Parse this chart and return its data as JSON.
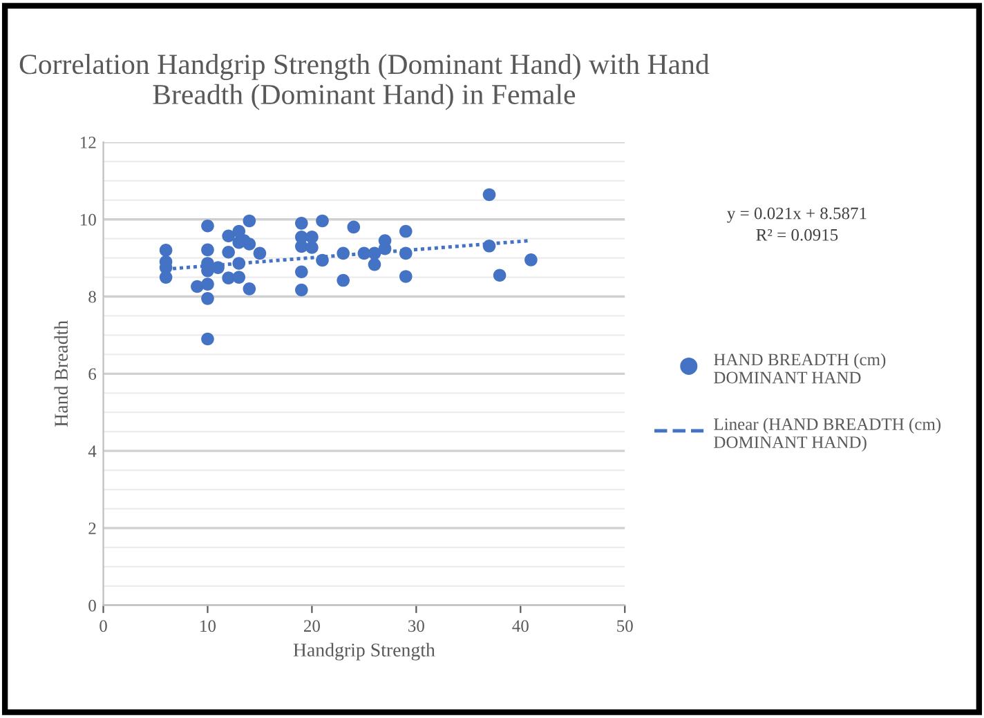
{
  "chart_data": {
    "type": "scatter",
    "title": "Correlation Handgrip Strength (Dominant Hand) with Hand Breadth (Dominant Hand) in Female",
    "xlabel": "Handgrip Strength",
    "ylabel": "Hand Breadth",
    "xlim": [
      0,
      50
    ],
    "xticks": [
      0,
      10,
      20,
      30,
      40,
      50
    ],
    "ylim": [
      0,
      12
    ],
    "yticks": [
      0,
      {
        "value": 0.5,
        "label": null
      },
      {
        "value": 1,
        "label": null
      },
      {
        "value": 1.5,
        "label": null
      },
      2,
      {
        "value": 2.5,
        "label": null
      },
      {
        "value": 3,
        "label": null
      },
      {
        "value": 3.5,
        "label": null
      },
      4,
      {
        "value": 4.5,
        "label": null
      },
      {
        "value": 5,
        "label": null
      },
      {
        "value": 5.5,
        "label": null
      },
      6,
      {
        "value": 6.5,
        "label": null
      },
      {
        "value": 7,
        "label": null
      },
      {
        "value": 7.5,
        "label": null
      },
      8,
      {
        "value": 8.5,
        "label": null
      },
      {
        "value": 9,
        "label": null
      },
      {
        "value": 9.5,
        "label": null
      },
      10,
      {
        "value": 10.5,
        "label": null
      },
      {
        "value": 11,
        "label": null
      },
      {
        "value": 11.5,
        "label": null
      },
      12
    ],
    "grid": "y",
    "legend": "right",
    "series": [
      {
        "name": "HAND BREADTH (cm) DOMINANT HAND",
        "color": "#4472c4",
        "marker": "circle",
        "x": [
          6,
          6,
          6,
          6,
          9,
          10,
          10,
          10,
          10,
          10,
          10,
          10,
          11,
          12,
          12,
          12,
          13,
          13,
          13,
          13,
          13.5,
          14,
          14,
          14,
          15,
          19,
          19,
          19,
          19,
          19,
          20,
          20,
          21,
          21,
          23,
          23,
          24,
          25,
          26,
          26,
          27,
          27,
          29,
          29,
          29,
          37,
          37,
          38,
          41
        ],
        "values": [
          9.2,
          8.9,
          8.75,
          8.5,
          8.26,
          9.83,
          9.21,
          8.86,
          8.67,
          8.32,
          7.95,
          6.9,
          8.75,
          9.57,
          9.15,
          8.48,
          9.69,
          9.4,
          8.86,
          8.5,
          9.45,
          9.96,
          9.36,
          8.2,
          9.12,
          9.9,
          9.54,
          9.3,
          8.64,
          8.17,
          9.54,
          9.27,
          9.96,
          8.94,
          9.12,
          8.42,
          9.8,
          9.12,
          9.12,
          8.83,
          9.45,
          9.24,
          9.69,
          9.12,
          8.52,
          10.64,
          9.31,
          8.55,
          8.95
        ]
      },
      {
        "name": "Linear (HAND BREADTH (cm) DOMINANT HAND)",
        "color": "#4472c4",
        "type": "line",
        "line_style": "dotted",
        "marker": "none",
        "x": [
          6,
          41
        ],
        "values": [
          8.71,
          9.45
        ]
      }
    ],
    "annotations": [
      "y = 0.021x + 8.5871",
      "R² = 0.0915"
    ]
  }
}
